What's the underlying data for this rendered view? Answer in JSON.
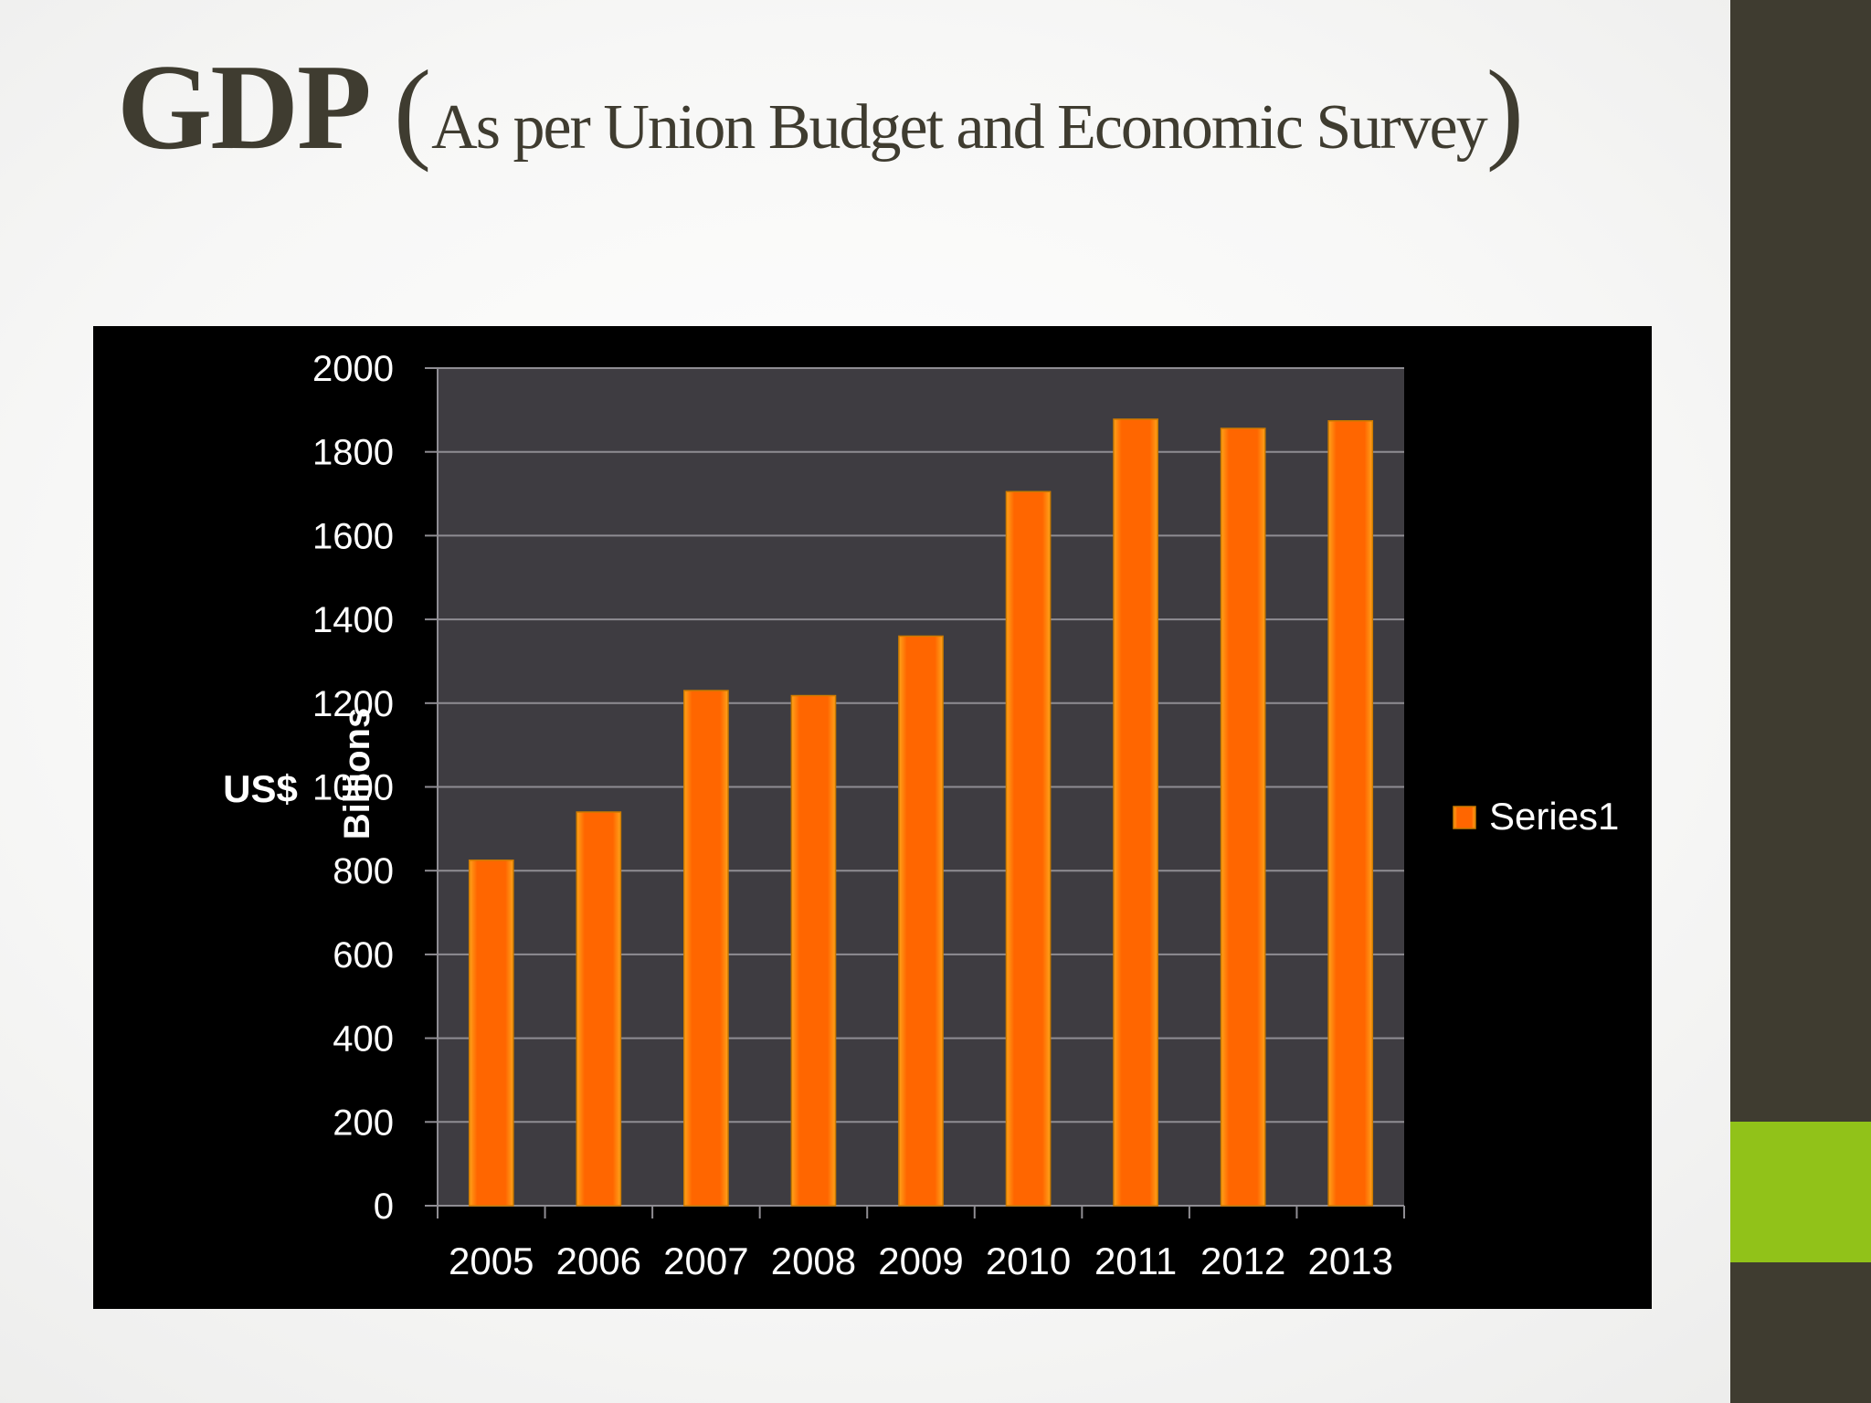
{
  "slide": {
    "title_main": "GDP",
    "title_paren_open": "(",
    "title_sub": "As per Union Budget and Economic Survey",
    "title_paren_close": ")"
  },
  "theme": {
    "sidebar_color": "#3f3c30",
    "accent_color": "#91c219",
    "bar_color": "#ff6600",
    "bar_edge_color": "#ffa31a",
    "plot_bg": "#3e3c41",
    "panel_bg": "#000000"
  },
  "chart_data": {
    "type": "bar",
    "categories": [
      "2005",
      "2006",
      "2007",
      "2008",
      "2009",
      "2010",
      "2011",
      "2012",
      "2013"
    ],
    "series": [
      {
        "name": "Series1",
        "values": [
          825,
          940,
          1230,
          1218,
          1360,
          1705,
          1878,
          1856,
          1874
        ]
      }
    ],
    "ylabel_units": "Billions",
    "ylabel": "US$",
    "xlabel": "",
    "ylim": [
      0,
      2000
    ],
    "yticks": [
      0,
      200,
      400,
      600,
      800,
      1000,
      1200,
      1400,
      1600,
      1800,
      2000
    ],
    "grid": true,
    "legend_position": "right"
  }
}
